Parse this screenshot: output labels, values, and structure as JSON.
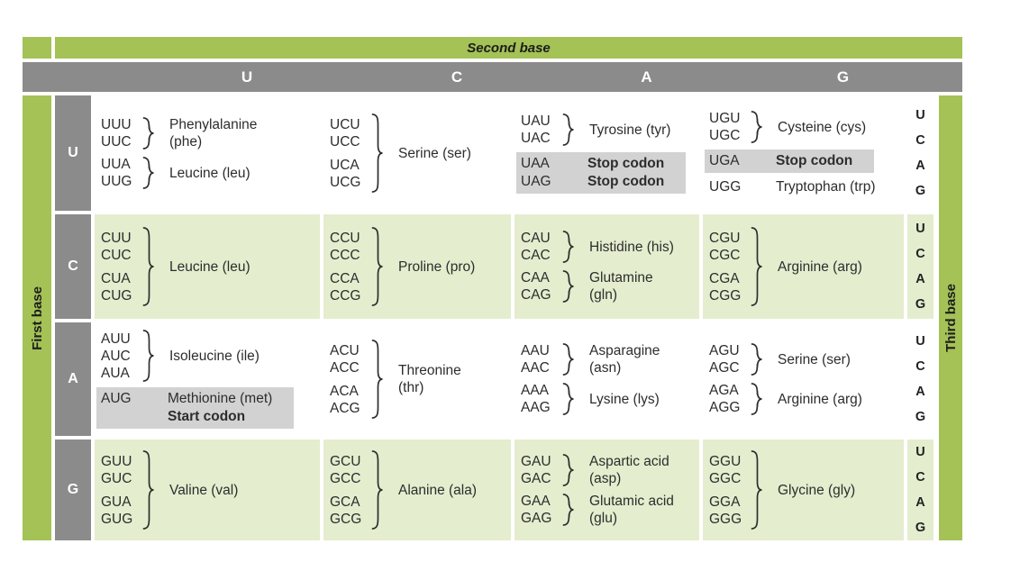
{
  "figure": {
    "second_base_title": "Second base",
    "first_base_title": "First base",
    "third_base_title": "Third base",
    "second_base_letters": [
      "U",
      "C",
      "A",
      "G"
    ],
    "third_base_letters": [
      "U",
      "C",
      "A",
      "G"
    ]
  },
  "colors": {
    "green": "#a4c256",
    "light_green": "#e4edce",
    "gray_header": "#8b8b8b",
    "highlight_gray": "#d2d2d2",
    "text_dark": "#2d2d2d"
  },
  "rows": [
    {
      "first_base": "U",
      "shaded": false,
      "cells": [
        {
          "groups": [
            {
              "type": "brace",
              "codons": [
                "UUU",
                "UUC"
              ],
              "label_lines": [
                "Phenylalanine",
                "(phe)"
              ]
            },
            {
              "type": "brace",
              "codons": [
                "UUA",
                "UUG"
              ],
              "label_lines": [
                "Leucine (leu)"
              ]
            }
          ]
        },
        {
          "groups": [
            {
              "type": "brace",
              "codons": [
                "UCU",
                "UCC",
                "UCA",
                "UCG"
              ],
              "label_lines": [
                "Serine (ser)"
              ]
            }
          ]
        },
        {
          "groups": [
            {
              "type": "brace",
              "codons": [
                "UAU",
                "UAC"
              ],
              "label_lines": [
                "Tyrosine (tyr)"
              ]
            },
            {
              "type": "plain",
              "highlight": true,
              "lines": [
                {
                  "codon": "UAA",
                  "label": "Stop codon",
                  "bold": true
                },
                {
                  "codon": "UAG",
                  "label": "Stop codon",
                  "bold": true
                }
              ]
            }
          ]
        },
        {
          "groups": [
            {
              "type": "brace",
              "codons": [
                "UGU",
                "UGC"
              ],
              "label_lines": [
                "Cysteine (cys)"
              ]
            },
            {
              "type": "plain",
              "highlight": true,
              "lines": [
                {
                  "codon": "UGA",
                  "label": "Stop codon",
                  "bold": true
                }
              ]
            },
            {
              "type": "plain",
              "highlight": false,
              "lines": [
                {
                  "codon": "UGG",
                  "label": "Tryptophan (trp)",
                  "bold": false
                }
              ]
            }
          ]
        }
      ]
    },
    {
      "first_base": "C",
      "shaded": true,
      "cells": [
        {
          "groups": [
            {
              "type": "brace",
              "codons": [
                "CUU",
                "CUC",
                "CUA",
                "CUG"
              ],
              "label_lines": [
                "Leucine (leu)"
              ]
            }
          ]
        },
        {
          "groups": [
            {
              "type": "brace",
              "codons": [
                "CCU",
                "CCC",
                "CCA",
                "CCG"
              ],
              "label_lines": [
                "Proline (pro)"
              ]
            }
          ]
        },
        {
          "groups": [
            {
              "type": "brace",
              "codons": [
                "CAU",
                "CAC"
              ],
              "label_lines": [
                "Histidine (his)"
              ]
            },
            {
              "type": "brace",
              "codons": [
                "CAA",
                "CAG"
              ],
              "label_lines": [
                "Glutamine",
                "(gln)"
              ]
            }
          ]
        },
        {
          "groups": [
            {
              "type": "brace",
              "codons": [
                "CGU",
                "CGC",
                "CGA",
                "CGG"
              ],
              "label_lines": [
                "Arginine (arg)"
              ]
            }
          ]
        }
      ]
    },
    {
      "first_base": "A",
      "shaded": false,
      "cells": [
        {
          "groups": [
            {
              "type": "brace",
              "codons": [
                "AUU",
                "AUC",
                "AUA"
              ],
              "label_lines": [
                "Isoleucine (ile)"
              ]
            },
            {
              "type": "plain",
              "highlight": true,
              "lines": [
                {
                  "codon": "AUG",
                  "label": "Methionine (met)",
                  "bold": false
                },
                {
                  "codon": "",
                  "label": "Start codon",
                  "bold": true
                }
              ]
            }
          ]
        },
        {
          "groups": [
            {
              "type": "brace",
              "codons": [
                "ACU",
                "ACC",
                "ACA",
                "ACG"
              ],
              "label_lines": [
                "Threonine",
                "(thr)"
              ]
            }
          ]
        },
        {
          "groups": [
            {
              "type": "brace",
              "codons": [
                "AAU",
                "AAC"
              ],
              "label_lines": [
                "Asparagine",
                "(asn)"
              ]
            },
            {
              "type": "brace",
              "codons": [
                "AAA",
                "AAG"
              ],
              "label_lines": [
                "Lysine (lys)"
              ]
            }
          ]
        },
        {
          "groups": [
            {
              "type": "brace",
              "codons": [
                "AGU",
                "AGC"
              ],
              "label_lines": [
                "Serine (ser)"
              ]
            },
            {
              "type": "brace",
              "codons": [
                "AGA",
                "AGG"
              ],
              "label_lines": [
                "Arginine (arg)"
              ]
            }
          ]
        }
      ]
    },
    {
      "first_base": "G",
      "shaded": true,
      "cells": [
        {
          "groups": [
            {
              "type": "brace",
              "codons": [
                "GUU",
                "GUC",
                "GUA",
                "GUG"
              ],
              "label_lines": [
                "Valine (val)"
              ]
            }
          ]
        },
        {
          "groups": [
            {
              "type": "brace",
              "codons": [
                "GCU",
                "GCC",
                "GCA",
                "GCG"
              ],
              "label_lines": [
                "Alanine (ala)"
              ]
            }
          ]
        },
        {
          "groups": [
            {
              "type": "brace",
              "codons": [
                "GAU",
                "GAC"
              ],
              "label_lines": [
                "Aspartic acid",
                "(asp)"
              ]
            },
            {
              "type": "brace",
              "codons": [
                "GAA",
                "GAG"
              ],
              "label_lines": [
                "Glutamic acid",
                "(glu)"
              ]
            }
          ]
        },
        {
          "groups": [
            {
              "type": "brace",
              "codons": [
                "GGU",
                "GGC",
                "GGA",
                "GGG"
              ],
              "label_lines": [
                "Glycine (gly)"
              ]
            }
          ]
        }
      ]
    }
  ]
}
